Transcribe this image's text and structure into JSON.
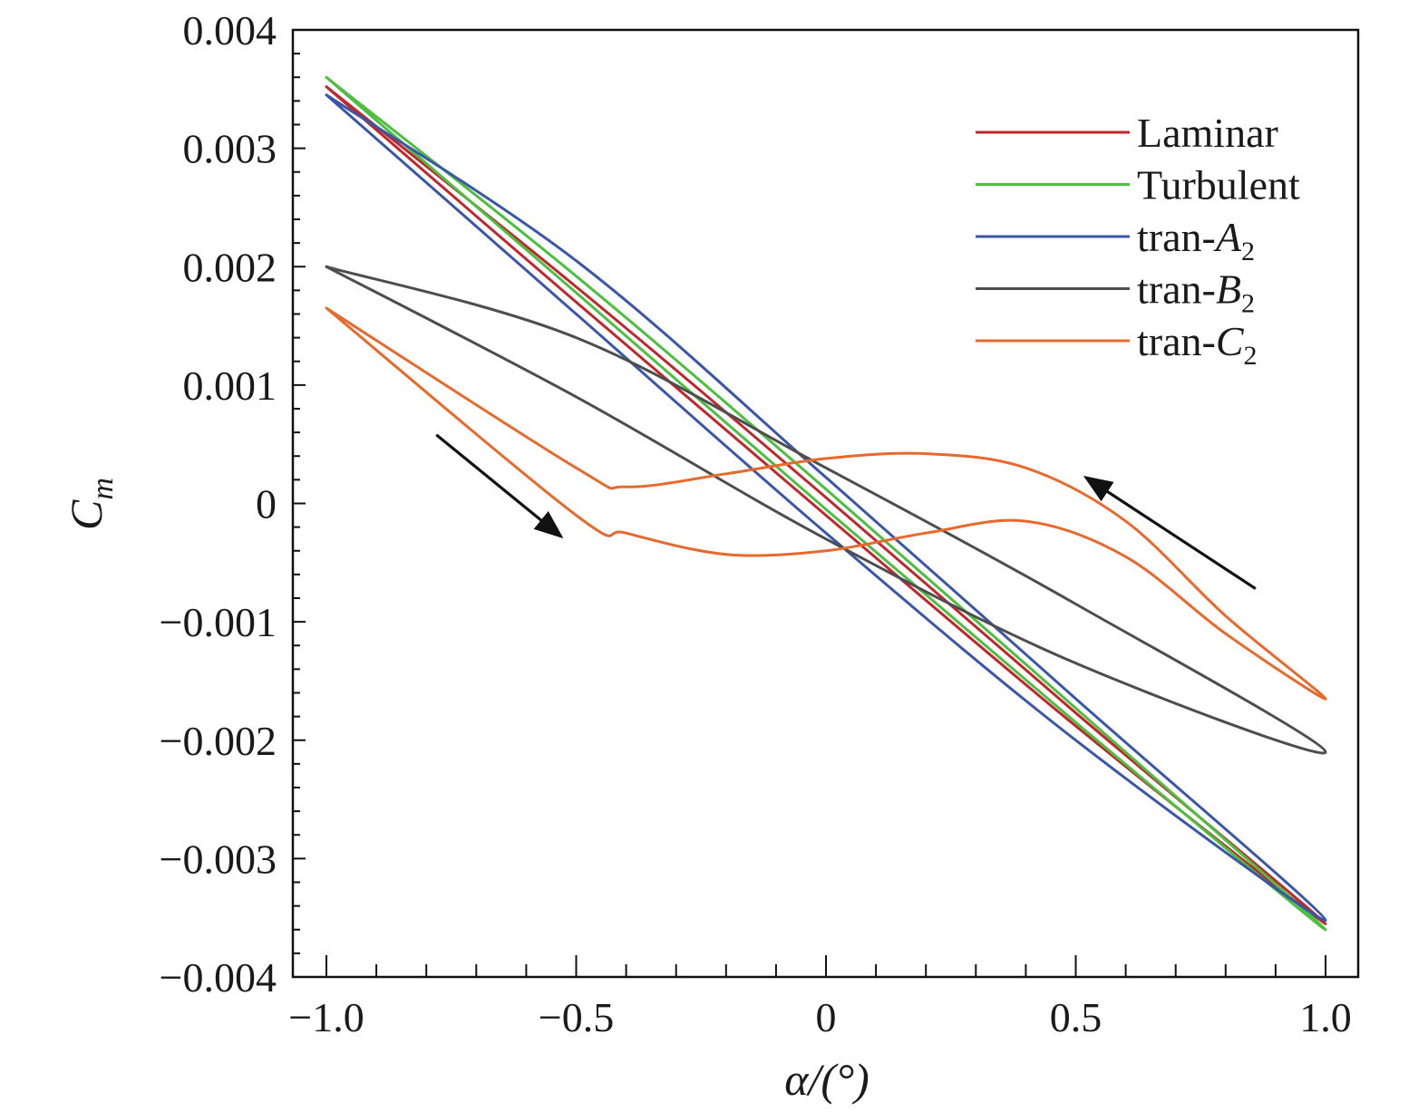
{
  "chart_data": {
    "type": "line",
    "xlabel": "α/(°)",
    "ylabel": "C_m",
    "xlim": [
      -1.0,
      1.0
    ],
    "ylim": [
      -0.004,
      0.004
    ],
    "x_ticks": [
      -1.0,
      -0.5,
      0,
      0.5,
      1.0
    ],
    "x_tick_labels": [
      "−1.0",
      "−0.5",
      "0",
      "0.5",
      "1.0"
    ],
    "y_ticks": [
      0.004,
      0.003,
      0.002,
      0.001,
      0,
      -0.001,
      -0.002,
      -0.003,
      -0.004
    ],
    "y_tick_labels": [
      "0.004",
      "0.003",
      "0.002",
      "0.001",
      "0",
      "−0.001",
      "−0.002",
      "−0.003",
      "−0.004"
    ],
    "grid": false,
    "legend_position": "top-right",
    "legend": [
      {
        "prefix": "Laminar",
        "italic": "",
        "sub": ""
      },
      {
        "prefix": "Turbulent",
        "italic": "",
        "sub": ""
      },
      {
        "prefix": "tran-",
        "italic": "A",
        "sub": "2"
      },
      {
        "prefix": "tran-",
        "italic": "B",
        "sub": "2"
      },
      {
        "prefix": "tran-",
        "italic": "C",
        "sub": "2"
      }
    ],
    "series": [
      {
        "name": "Laminar",
        "color": "#c0272d",
        "x": [
          -1.0,
          -0.5,
          0,
          0.5,
          1.0,
          0.5,
          0,
          -0.5,
          -1.0
        ],
        "y": [
          0.00352,
          0.0017,
          -0.0001,
          -0.00188,
          -0.00355,
          -0.00177,
          5e-05,
          0.00183,
          0.00352
        ]
      },
      {
        "name": "Turbulent",
        "color": "#4dbf3f",
        "x": [
          -1.0,
          -0.5,
          0,
          0.5,
          1.0,
          0.5,
          0,
          -0.5,
          -1.0
        ],
        "y": [
          0.0036,
          0.00178,
          -5e-05,
          -0.00185,
          -0.0036,
          -0.00173,
          0.00012,
          0.00192,
          0.0036
        ]
      },
      {
        "name": "tran-A2",
        "color": "#3a56a8",
        "x": [
          -1.0,
          -0.5,
          0,
          0.5,
          1.0,
          0.5,
          0,
          -0.5,
          -1.0
        ],
        "y": [
          0.00345,
          0.0016,
          -0.00025,
          -0.002,
          -0.00352,
          -0.00165,
          0.00022,
          0.00205,
          0.00345
        ]
      },
      {
        "name": "tran-B2",
        "color": "#4d4d4f",
        "x": [
          -1.0,
          -0.5,
          0,
          0.5,
          1.0,
          0.5,
          0,
          -0.5,
          -1.0
        ],
        "y": [
          0.002,
          0.0009,
          -0.0003,
          -0.00135,
          -0.0021,
          -0.00085,
          0.0003,
          0.0014,
          0.002
        ]
      },
      {
        "name": "tran-C2",
        "color": "#e8692c",
        "x": [
          -1.0,
          -0.5,
          -0.4,
          -0.2,
          0,
          0.2,
          0.4,
          0.6,
          0.8,
          1.0,
          0.8,
          0.6,
          0.4,
          0.2,
          0,
          -0.2,
          -0.4,
          -0.5,
          -1.0
        ],
        "y": [
          0.00165,
          -0.0001,
          -0.00025,
          -0.00043,
          -0.0004,
          -0.00025,
          -0.00015,
          -0.00045,
          -0.0011,
          -0.00165,
          -0.00095,
          -0.00015,
          0.0003,
          0.00042,
          0.00038,
          0.00025,
          0.00014,
          0.0003,
          0.00165
        ]
      }
    ],
    "annotations": [
      {
        "type": "arrow",
        "from": [
          -0.78,
          0.00058
        ],
        "to": [
          -0.53,
          -0.00028
        ]
      },
      {
        "type": "arrow",
        "from": [
          0.86,
          -0.00072
        ],
        "to": [
          0.52,
          0.00022
        ]
      }
    ]
  }
}
